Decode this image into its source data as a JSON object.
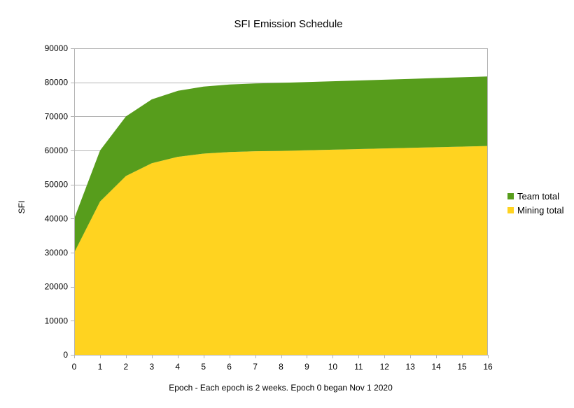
{
  "chart_data": {
    "type": "area",
    "stacked": true,
    "title": "SFI Emission Schedule",
    "xlabel": "Epoch - Each epoch is 2 weeks. Epoch 0 began Nov 1 2020",
    "ylabel": "SFI",
    "x": [
      0,
      1,
      2,
      3,
      4,
      5,
      6,
      7,
      8,
      9,
      10,
      11,
      12,
      13,
      14,
      15,
      16
    ],
    "xlim": [
      0,
      16
    ],
    "ylim": [
      0,
      90000
    ],
    "y_ticks": [
      0,
      10000,
      20000,
      30000,
      40000,
      50000,
      60000,
      70000,
      80000,
      90000
    ],
    "x_ticks": [
      0,
      1,
      2,
      3,
      4,
      5,
      6,
      7,
      8,
      9,
      10,
      11,
      12,
      13,
      14,
      15,
      16
    ],
    "grid": "horizontal",
    "legend_position": "right",
    "series": [
      {
        "name": "Mining total",
        "color": "#ffd320",
        "values": [
          30000,
          45000,
          52500,
          56250,
          58125,
          59063,
          59531,
          59766,
          59883,
          60055,
          60229,
          60405,
          60582,
          60761,
          60941,
          61123,
          61306
        ]
      },
      {
        "name": "Team total",
        "color": "#579d1c",
        "values": [
          10000,
          15000,
          17500,
          18750,
          19375,
          19688,
          19844,
          19922,
          19961,
          20018,
          20076,
          20135,
          20194,
          20254,
          20314,
          20374,
          20435
        ]
      }
    ]
  }
}
